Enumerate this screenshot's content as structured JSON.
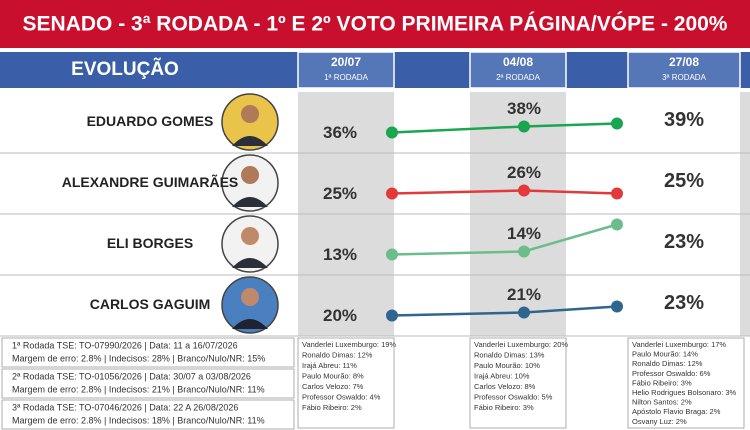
{
  "header": {
    "title": "SENADO - 3ª RODADA - 1º E 2º VOTO PRIMEIRA PÁGINA/VÓPE - 200%"
  },
  "chart_data": {
    "type": "line",
    "title": "EVOLUÇÃO",
    "categories": [
      "20/07",
      "04/08",
      "27/08"
    ],
    "category_subtitles": [
      "1ª RODADA",
      "2ª RODADA",
      "3ª RODADA"
    ],
    "series": [
      {
        "name": "EDUARDO GOMES",
        "color": "#1aa551",
        "values": [
          36,
          38,
          39
        ],
        "value_labels": [
          "36%",
          "38%",
          "39%"
        ]
      },
      {
        "name": "ALEXANDRE GUIMARÃES",
        "color": "#e23a3a",
        "values": [
          25,
          26,
          25
        ],
        "value_labels": [
          "25%",
          "26%",
          "25%"
        ]
      },
      {
        "name": "ELI BORGES",
        "color": "#6cbd8c",
        "values": [
          13,
          14,
          23
        ],
        "value_labels": [
          "13%",
          "14%",
          "23%"
        ]
      },
      {
        "name": "CARLOS GAGUIM",
        "color": "#2e6690",
        "values": [
          20,
          21,
          23
        ],
        "value_labels": [
          "20%",
          "21%",
          "23%"
        ]
      }
    ]
  },
  "footnotes": [
    {
      "line1": "1ª Rodada TSE: TO-07990/2026 | Data: 11 a 16/07/2026",
      "line2": "Margem de erro: 2.8% | Indecisos: 28% | Branco/Nulo/NR: 15%"
    },
    {
      "line1": "2ª Rodada TSE: TO-01056/2026 | Data: 30/07 a 03/08/2026",
      "line2": "Margem de erro: 2.8% | Indecisos: 21% | Branco/Nulo/NR: 11%"
    },
    {
      "line1": "3ª Rodada TSE: TO-07046/2026 | Data: 22 A 26/08/2026",
      "line2": "Margem de erro: 2.8% | Indecisos: 18% | Branco/Nulo/NR: 11%"
    }
  ],
  "other_candidates": [
    [
      "Vanderlei Luxemburgo: 19%",
      "Ronaldo Dimas: 12%",
      "Irajá Abreu: 11%",
      "Paulo Mourão: 8%",
      "Carlos Velozo: 7%",
      "Professor Oswaldo: 4%",
      "Fábio Ribeiro: 2%"
    ],
    [
      "Vanderlei Luxemburgo: 20%",
      "Ronaldo Dimas: 13%",
      "Paulo Mourão: 10%",
      "Irajá Abreu: 10%",
      "Carlos Velozo: 8%",
      "Professor Oswaldo: 5%",
      "Fábio Ribeiro: 3%"
    ],
    [
      "Vanderlei Luxemburgo: 17%",
      "Paulo Mourão: 14%",
      "Ronaldo Dimas: 12%",
      "Professor Oswaldo: 6%",
      "Fábio Ribeiro: 3%",
      "Helio Rodrigues Bolsonaro: 3%",
      "Nilton Santos: 2%",
      "Apóstolo Flavio Braga: 2%",
      "Osvany Luz: 2%"
    ]
  ]
}
